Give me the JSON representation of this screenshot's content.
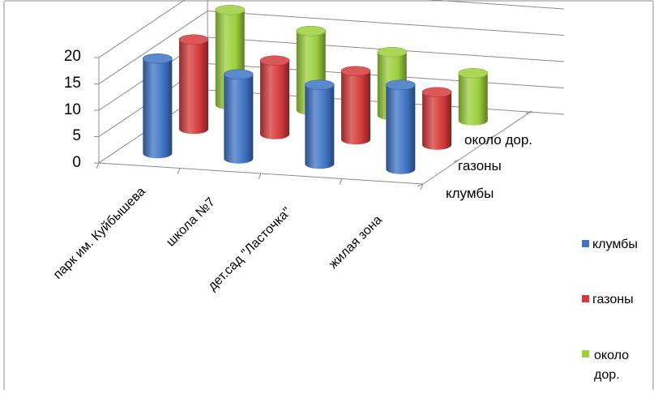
{
  "colors": {
    "клумбы": "#3f74c4",
    "газоны": "#d63a3a",
    "около дор.": "#9ccf3c"
  },
  "chart_data": {
    "type": "bar",
    "subtype": "3d-cylinder",
    "categories": [
      "парк им. Куйбышева",
      "школа №7",
      "дет.сад \"Ласточка\"",
      "жилая зона"
    ],
    "series": [
      {
        "name": "клумбы",
        "values": [
          18,
          16,
          15,
          16
        ]
      },
      {
        "name": "газоны",
        "values": [
          17,
          14,
          13,
          10
        ]
      },
      {
        "name": "около дор.",
        "values": [
          18,
          15,
          12,
          9
        ]
      }
    ],
    "depth_labels": [
      "около дор.",
      "газоны",
      "клумбы"
    ],
    "legend_labels": [
      "клумбы",
      "газоны",
      "около дор."
    ],
    "y_ticks": [
      "0",
      "5",
      "10",
      "15",
      "20"
    ],
    "ylim": [
      0,
      20
    ],
    "grid": true,
    "legend": "right",
    "title": "",
    "xlabel": "",
    "ylabel": ""
  }
}
